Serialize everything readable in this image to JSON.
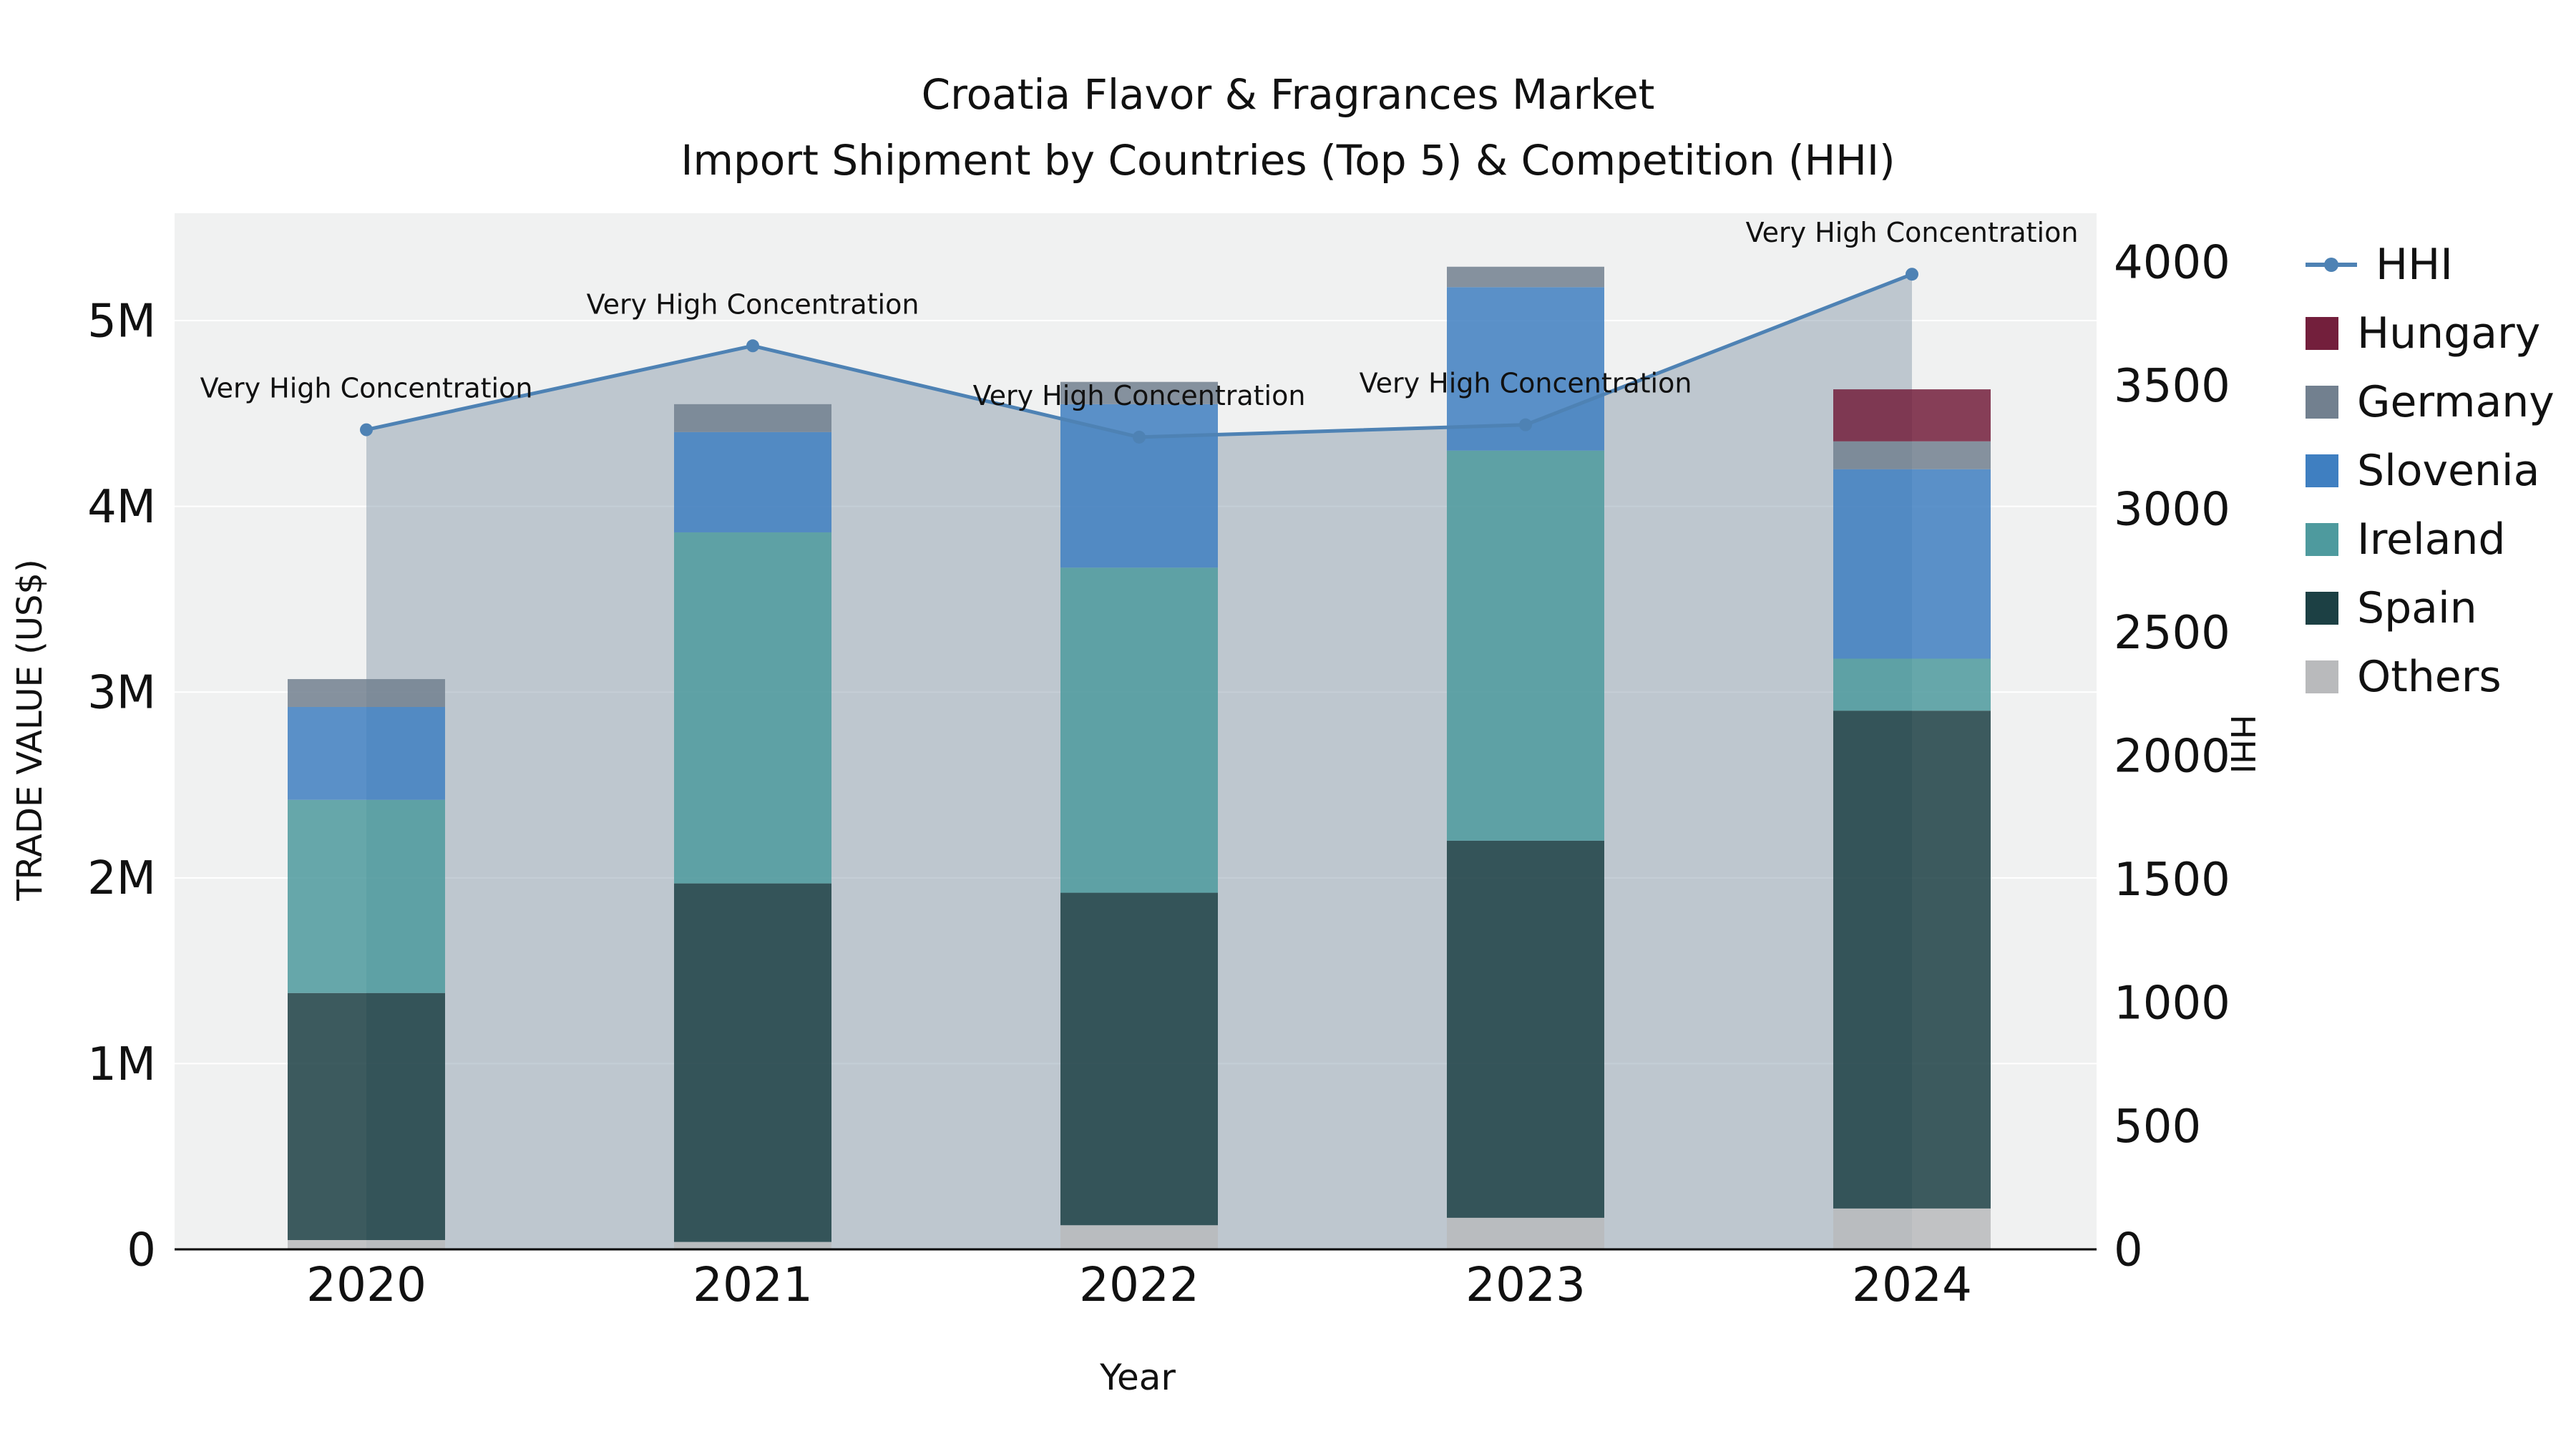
{
  "chart_data": {
    "type": "combo-stacked-bar-line",
    "title_line1": "Croatia Flavor & Fragrances Market",
    "title_line2": "Import Shipment by Countries (Top 5) & Competition (HHI)",
    "xlabel": "Year",
    "background": {
      "page": "#ffffff",
      "plot": "#f0f1f1",
      "gridline": "#ffffff"
    },
    "years": [
      "2020",
      "2021",
      "2022",
      "2023",
      "2024"
    ],
    "left_axis": {
      "title": "TRADE VALUE (US$)",
      "labels": [
        "0",
        "1M",
        "2M",
        "3M",
        "4M",
        "5M"
      ],
      "values": [
        0,
        1,
        2,
        3,
        4,
        5
      ],
      "unit": "millions USD",
      "max": 5.578
    },
    "right_axis": {
      "title": "HHI",
      "labels": [
        "0",
        "500",
        "1000",
        "1500",
        "2000",
        "2500",
        "3000",
        "3500",
        "4000"
      ],
      "values": [
        0,
        500,
        1000,
        1500,
        2000,
        2500,
        3000,
        3500,
        4000
      ],
      "max": 4197
    },
    "bar_series": [
      {
        "name": "Others",
        "color": "#b9babc",
        "values_musd": [
          0.05,
          0.04,
          0.13,
          0.17,
          0.22
        ]
      },
      {
        "name": "Spain",
        "color": "#1c4044",
        "values_musd": [
          1.33,
          1.93,
          1.79,
          2.03,
          2.68
        ]
      },
      {
        "name": "Ireland",
        "color": "#4e9a9e",
        "values_musd": [
          1.04,
          1.89,
          1.75,
          2.1,
          0.28
        ]
      },
      {
        "name": "Slovenia",
        "color": "#3f7fc1",
        "values_musd": [
          0.5,
          0.54,
          0.88,
          0.88,
          1.02
        ]
      },
      {
        "name": "Germany",
        "color": "#72808f",
        "values_musd": [
          0.15,
          0.15,
          0.12,
          0.11,
          0.15
        ]
      },
      {
        "name": "Hungary",
        "color": "#731f3c",
        "values_musd": [
          0.0,
          0.0,
          0.0,
          0.0,
          0.28
        ]
      }
    ],
    "hhi": {
      "name": "HHI",
      "color": "#4e82b4",
      "area_fill": "#8b9dad",
      "values": [
        3320,
        3660,
        3290,
        3340,
        3950
      ]
    },
    "annotations": [
      "Very High Concentration",
      "Very High Concentration",
      "Very High Concentration",
      "Very High Concentration",
      "Very High Concentration"
    ],
    "legend": [
      {
        "name": "HHI",
        "type": "line",
        "color": "#4e82b4"
      },
      {
        "name": "Hungary",
        "type": "square",
        "color": "#731f3c"
      },
      {
        "name": "Germany",
        "type": "square",
        "color": "#72808f"
      },
      {
        "name": "Slovenia",
        "type": "square",
        "color": "#3f7fc1"
      },
      {
        "name": "Ireland",
        "type": "square",
        "color": "#4e9a9e"
      },
      {
        "name": "Spain",
        "type": "square",
        "color": "#1c4044"
      },
      {
        "name": "Others",
        "type": "square",
        "color": "#b9babc"
      }
    ]
  }
}
